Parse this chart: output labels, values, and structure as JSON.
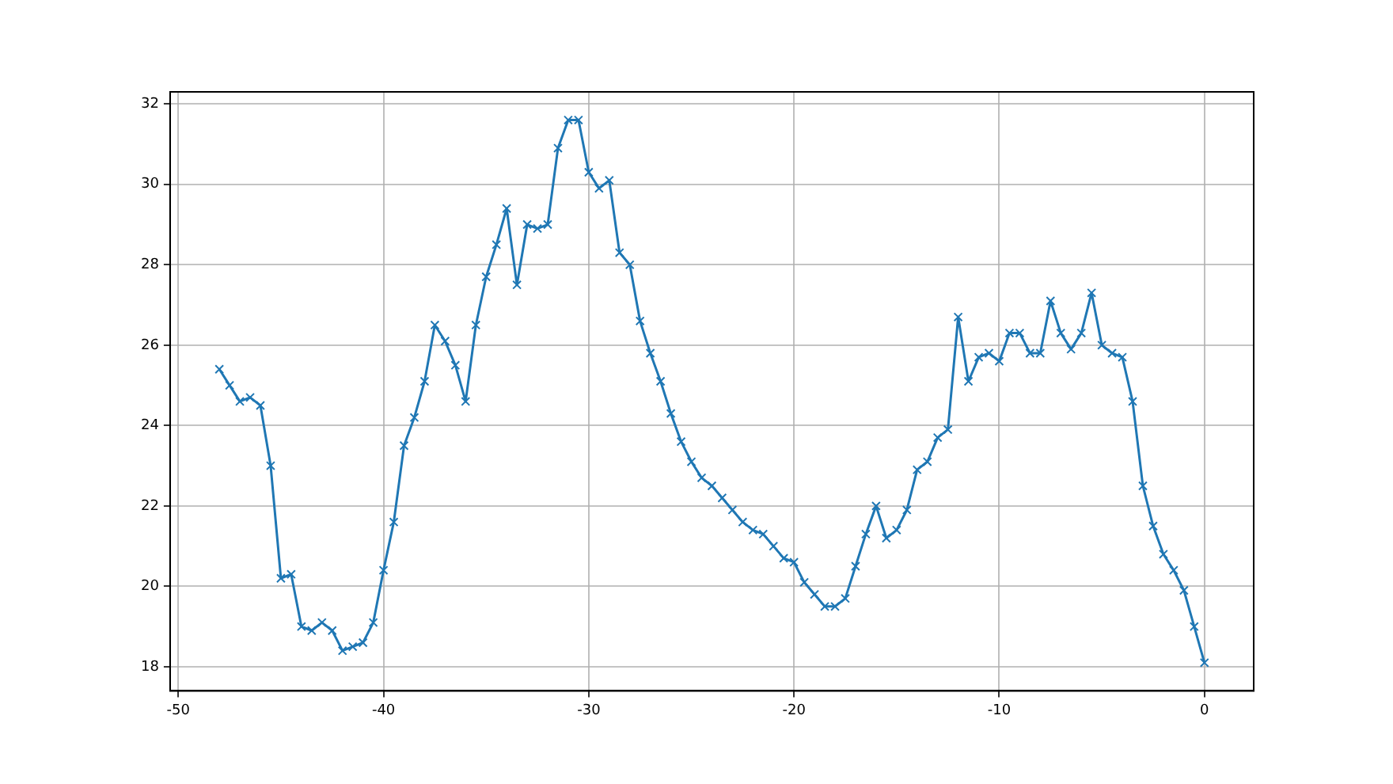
{
  "chart_data": {
    "type": "line",
    "x": [
      -48,
      -47.5,
      -47,
      -46.5,
      -46,
      -45.5,
      -45,
      -44.5,
      -44,
      -43.5,
      -43,
      -42.5,
      -42,
      -41.5,
      -41,
      -40.5,
      -40,
      -39.5,
      -39,
      -38.5,
      -38,
      -37.5,
      -37,
      -36.5,
      -36,
      -35.5,
      -35,
      -34.5,
      -34,
      -33.5,
      -33,
      -32.5,
      -32,
      -31.5,
      -31,
      -30.5,
      -30,
      -29.5,
      -29,
      -28.5,
      -28,
      -27.5,
      -27,
      -26.5,
      -26,
      -25.5,
      -25,
      -24.5,
      -24,
      -23.5,
      -23,
      -22.5,
      -22,
      -21.5,
      -21,
      -20.5,
      -20,
      -19.5,
      -19,
      -18.5,
      -18,
      -17.5,
      -17,
      -16.5,
      -16,
      -15.5,
      -15,
      -14.5,
      -14,
      -13.5,
      -13,
      -12.5,
      -12,
      -11.5,
      -11,
      -10.5,
      -10,
      -9.5,
      -9,
      -8.5,
      -8,
      -7.5,
      -7,
      -6.5,
      -6,
      -5.5,
      -5,
      -4.5,
      -4,
      -3.5,
      -3,
      -2.5,
      -2,
      -1.5,
      -1,
      -0.5,
      0
    ],
    "series": [
      {
        "color": "#1f77b4",
        "values": [
          25.4,
          25.0,
          24.6,
          24.7,
          24.5,
          23.0,
          20.2,
          20.3,
          19.0,
          18.9,
          19.1,
          18.9,
          18.4,
          18.5,
          18.6,
          19.1,
          20.4,
          21.6,
          23.5,
          24.2,
          25.1,
          26.5,
          26.1,
          25.5,
          24.6,
          26.5,
          27.7,
          28.5,
          29.4,
          27.5,
          29.0,
          28.9,
          29.0,
          30.9,
          31.6,
          31.6,
          30.3,
          29.9,
          30.1,
          28.3,
          28.0,
          26.6,
          25.8,
          25.1,
          24.3,
          23.6,
          23.1,
          22.7,
          22.5,
          22.2,
          21.9,
          21.6,
          21.4,
          21.3,
          21.0,
          20.7,
          20.6,
          20.1,
          19.8,
          19.5,
          19.5,
          19.7,
          20.5,
          21.3,
          22.0,
          21.2,
          21.4,
          21.9,
          22.9,
          23.1,
          23.7,
          23.9,
          26.7,
          25.1,
          25.7,
          25.8,
          25.6,
          26.3,
          26.3,
          25.8,
          25.8,
          27.1,
          26.3,
          25.9,
          26.3,
          27.3,
          26.0,
          25.8,
          25.7,
          24.6,
          22.5,
          21.5,
          20.8,
          20.4,
          19.9,
          19.0,
          18.1
        ]
      }
    ],
    "xlim": [
      -50.4,
      2.4
    ],
    "xticks": [
      -50,
      -40,
      -30,
      -20,
      -10,
      0
    ],
    "ylim": [
      17.4,
      32.3
    ],
    "yticks": [
      18,
      20,
      22,
      24,
      26,
      28,
      30,
      32
    ],
    "grid": true,
    "marker": "cross",
    "line_style": "solid"
  }
}
